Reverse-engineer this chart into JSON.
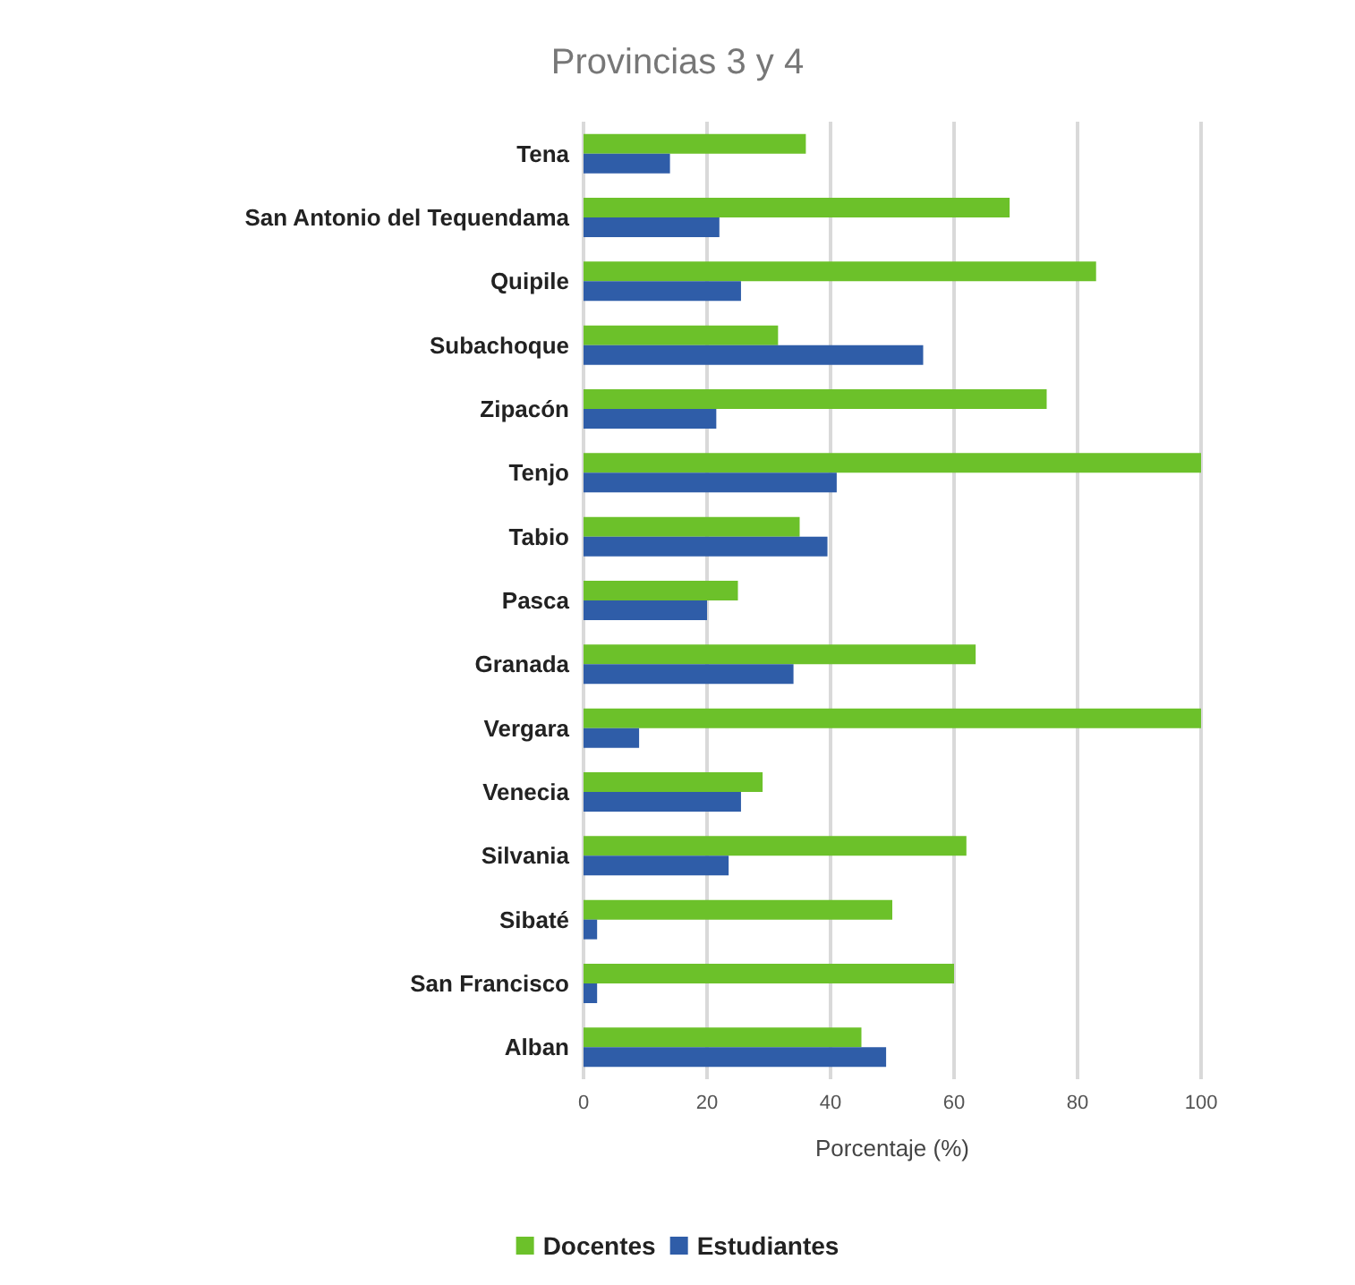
{
  "chart_data": {
    "type": "bar",
    "orientation": "horizontal",
    "title": "Provincias 3 y 4",
    "xlabel": "Porcentaje (%)",
    "categories": [
      "Tena",
      "San Antonio del Tequendama",
      "Quipile",
      "Subachoque",
      "Zipacón",
      "Tenjo",
      "Tabio",
      "Pasca",
      "Granada",
      "Vergara",
      "Venecia",
      "Silvania",
      "Sibaté",
      "San Francisco",
      "Alban"
    ],
    "series": [
      {
        "name": "Docentes",
        "color": "#6cc12a",
        "values": [
          36,
          69,
          83,
          31.5,
          75,
          100,
          35,
          25,
          63.5,
          100,
          29,
          62,
          50,
          60,
          45
        ]
      },
      {
        "name": "Estudiantes",
        "color": "#2f5da8",
        "values": [
          14,
          22,
          25.5,
          55,
          21.5,
          41,
          39.5,
          20,
          34,
          9,
          25.5,
          23.5,
          2.2,
          2.2,
          49
        ]
      }
    ],
    "xlim": [
      0,
      100
    ],
    "xticks": [
      0,
      20,
      40,
      60,
      80,
      100
    ],
    "grid": "x",
    "legend": "bottom"
  }
}
